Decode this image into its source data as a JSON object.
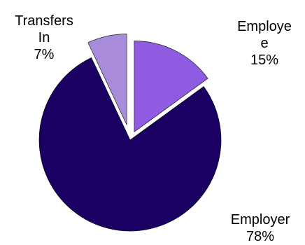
{
  "chart_data": {
    "type": "pie",
    "exploded": true,
    "start_angle_deg": 0,
    "direction": "clockwise",
    "legend": "none",
    "slices": [
      {
        "name": "Employee",
        "value": 15,
        "label_lines": [
          "Employe",
          "e"
        ],
        "value_label": "15%",
        "color": "#8F5BE0"
      },
      {
        "name": "Employer",
        "value": 78,
        "label_lines": [
          "Employer"
        ],
        "value_label": "78%",
        "color": "#1A0063"
      },
      {
        "name": "Transfers In",
        "value": 7,
        "label_lines": [
          "Transfers",
          "In"
        ],
        "value_label": "7%",
        "color": "#A88CDA"
      }
    ]
  }
}
